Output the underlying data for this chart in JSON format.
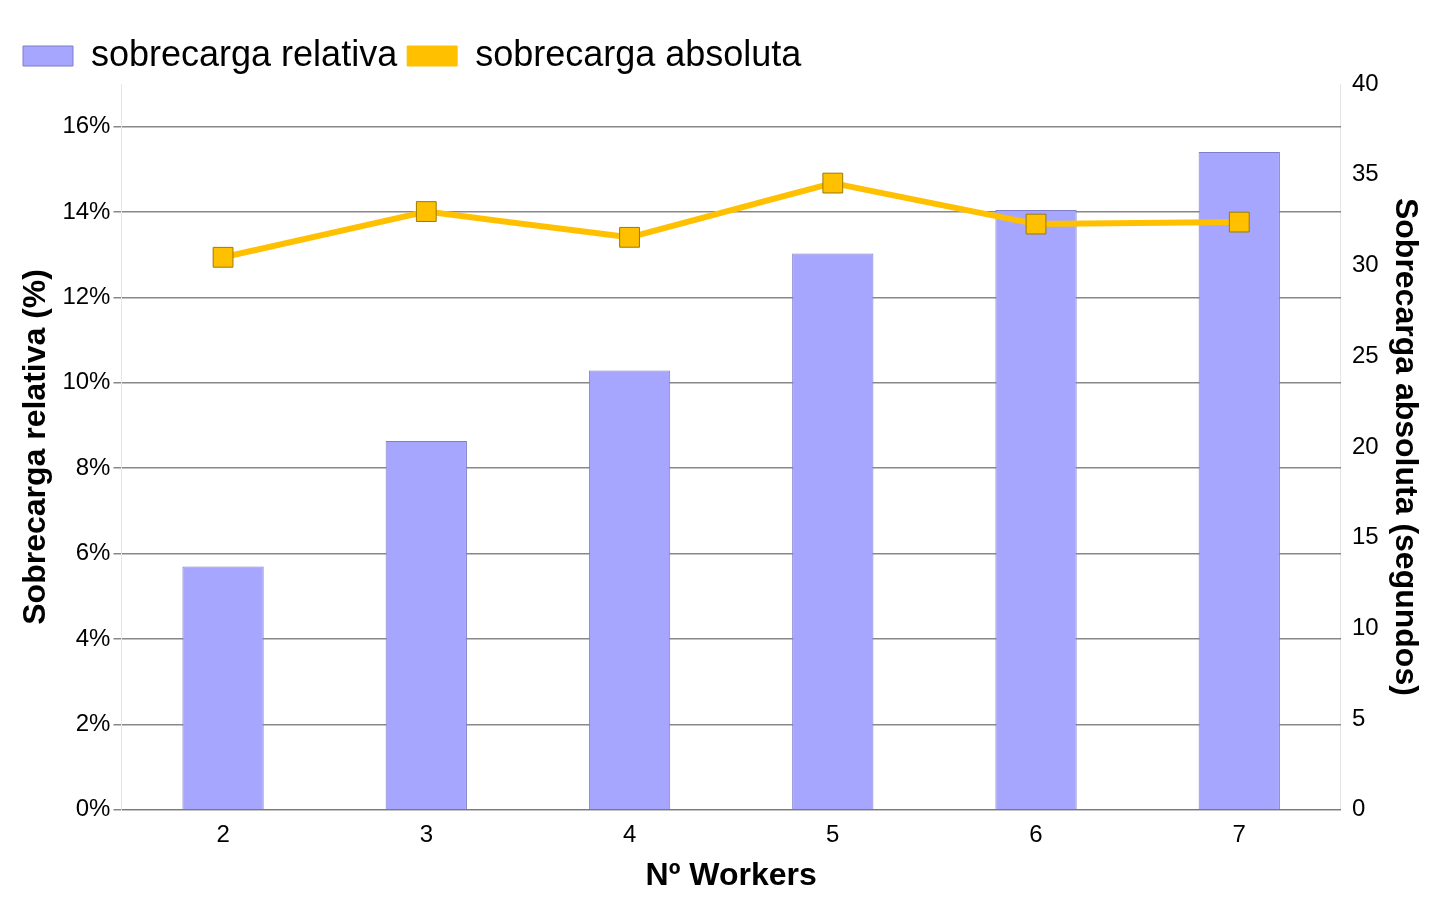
{
  "chart_data": {
    "type": "bar",
    "xlabel": "Nº Workers",
    "ylabel": "Sobrecarga relativa (%)",
    "y2label": "Sobrecarga absoluta (segundos)",
    "categories": [
      "2",
      "3",
      "4",
      "5",
      "6",
      "7"
    ],
    "series": [
      {
        "name": "sobrecarga relativa",
        "color": "#a6a6ff",
        "values": [
          5.7,
          8.64,
          10.29,
          13.03,
          14.05,
          15.41
        ]
      },
      {
        "name": "sobrecarga absoluta",
        "type": "line",
        "axis": "y2",
        "color": "#ffc000",
        "marker": "square",
        "values": [
          30.45,
          32.97,
          31.55,
          34.54,
          32.28,
          32.39
        ]
      }
    ],
    "ylim": [
      0,
      17
    ],
    "yticks": [
      {
        "value": 0,
        "label": "0%"
      },
      {
        "value": 2,
        "label": "2%"
      },
      {
        "value": 4,
        "label": "4%"
      },
      {
        "value": 6,
        "label": "6%"
      },
      {
        "value": 8,
        "label": "8%"
      },
      {
        "value": 10,
        "label": "10%"
      },
      {
        "value": 12,
        "label": "12%"
      },
      {
        "value": 14,
        "label": "14%"
      },
      {
        "value": 16,
        "label": "16%"
      }
    ],
    "y2lim": [
      0,
      40
    ],
    "y2ticks": [
      0,
      5,
      10,
      15,
      20,
      25,
      30,
      35,
      40
    ],
    "grid": "y",
    "legend": "top left"
  }
}
